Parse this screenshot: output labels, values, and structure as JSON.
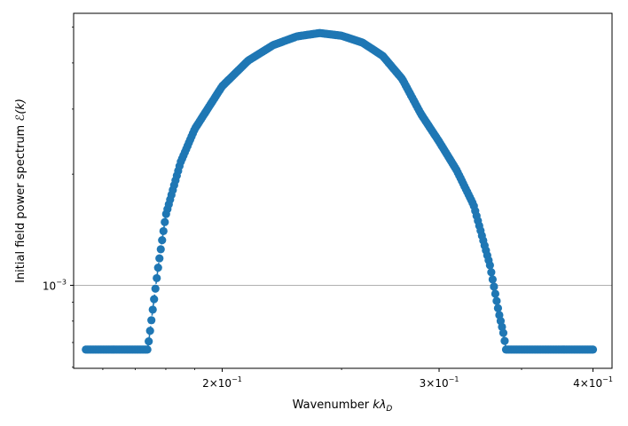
{
  "chart_data": {
    "type": "scatter",
    "x_scale": "log",
    "y_scale": "log",
    "xlabel": {
      "prefix": "Wavenumber ",
      "symbol": "kλ",
      "subscript": "D"
    },
    "ylabel": {
      "prefix": "Initial field power spectrum ",
      "symbol": "ℰ(k)"
    },
    "xlim": [
      0.1515,
      0.4145
    ],
    "ylim": [
      0.000596,
      0.00545
    ],
    "xticks": [
      {
        "value": 0.2,
        "mantissa": "2",
        "base": "10",
        "exp": "−1"
      },
      {
        "value": 0.3,
        "mantissa": "3",
        "base": "10",
        "exp": "−1"
      },
      {
        "value": 0.4,
        "mantissa": "4",
        "base": "10",
        "exp": "−1"
      }
    ],
    "yticks": [
      {
        "value": 0.001,
        "base": "10",
        "exp": "−3"
      }
    ],
    "grid": "horizontal at 10^-3",
    "colors": {
      "series": "#1f77b4",
      "grid": "#b0b0b0",
      "axis": "#000000"
    },
    "series": [
      {
        "marker": "circle",
        "linestyle": "dashed",
        "x_range": [
          0.155,
          0.4
        ],
        "point_count": 380,
        "floor_value": 0.00067,
        "band_start": 0.175,
        "band_end": 0.3395,
        "points": [
          [
            0.155,
            0.00067
          ],
          [
            0.165,
            0.00067
          ],
          [
            0.174,
            0.00067
          ],
          [
            0.1755,
            0.00084
          ],
          [
            0.1775,
            0.00113
          ],
          [
            0.18,
            0.00155
          ],
          [
            0.185,
            0.00215
          ],
          [
            0.19,
            0.00265
          ],
          [
            0.2,
            0.00346
          ],
          [
            0.21,
            0.00406
          ],
          [
            0.22,
            0.00447
          ],
          [
            0.23,
            0.00472
          ],
          [
            0.24,
            0.00482
          ],
          [
            0.25,
            0.00474
          ],
          [
            0.26,
            0.00454
          ],
          [
            0.27,
            0.00418
          ],
          [
            0.28,
            0.00362
          ],
          [
            0.29,
            0.00291
          ],
          [
            0.3,
            0.00245
          ],
          [
            0.31,
            0.00205
          ],
          [
            0.32,
            0.00165
          ],
          [
            0.33,
            0.00113
          ],
          [
            0.3355,
            0.00084
          ],
          [
            0.339,
            0.00072
          ],
          [
            0.3395,
            0.00067
          ],
          [
            0.36,
            0.00067
          ],
          [
            0.38,
            0.00067
          ],
          [
            0.4,
            0.00067
          ]
        ]
      }
    ]
  }
}
